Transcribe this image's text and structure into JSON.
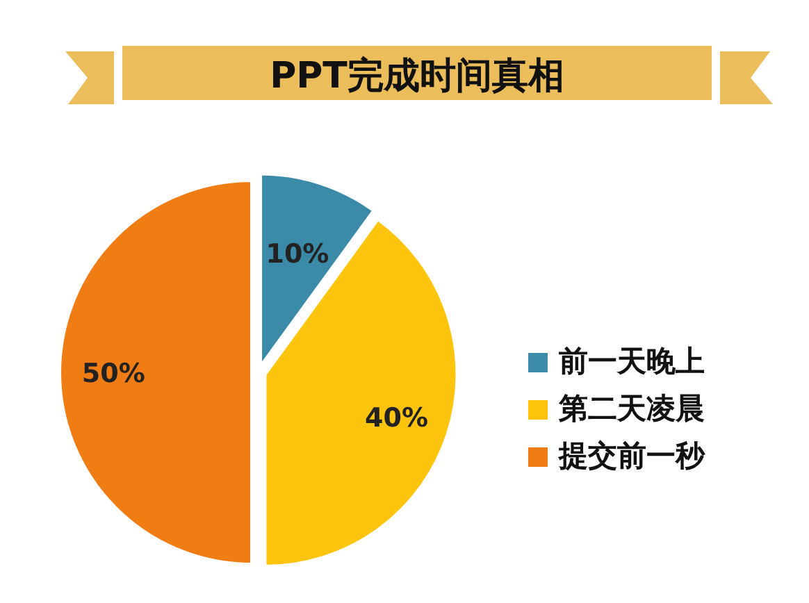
{
  "chart_data": {
    "type": "pie",
    "title": "PPT完成时间真相",
    "categories": [
      "前一天晚上",
      "第二天凌晨",
      "提交前一秒"
    ],
    "values": [
      10,
      40,
      50
    ],
    "colors": [
      "#3a8aa8",
      "#fcc40c",
      "#f07c14"
    ],
    "value_labels": [
      "10%",
      "40%",
      "50%"
    ],
    "legend": "right"
  }
}
